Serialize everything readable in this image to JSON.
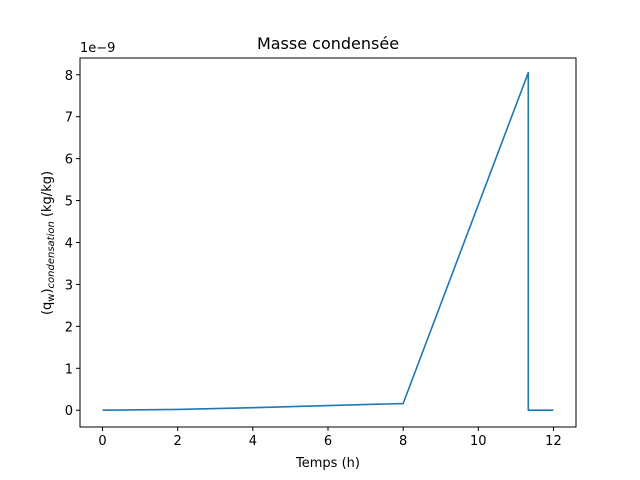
{
  "chart_data": {
    "type": "line",
    "title": "Masse condensée",
    "xlabel": "Temps (h)",
    "ylabel": {
      "prefix": "(q",
      "sub1": "w",
      "mid": ")",
      "sub2": "condensation",
      "suffix": " (kg/kg)"
    },
    "y_offset_label": "1e−9",
    "xlim": [
      -0.6,
      12.6
    ],
    "ylim": [
      -0.4,
      8.4
    ],
    "x_ticks": [
      0,
      2,
      4,
      6,
      8,
      10,
      12
    ],
    "y_ticks": [
      0,
      1,
      2,
      3,
      4,
      5,
      6,
      7,
      8
    ],
    "grid": false,
    "series": [
      {
        "color": "#1f77b4",
        "x": [
          0,
          2,
          4,
          6,
          8,
          11.33,
          11.33,
          12
        ],
        "y": [
          0.0,
          0.02,
          0.06,
          0.11,
          0.16,
          8.05,
          0.0,
          0.0
        ]
      }
    ]
  }
}
